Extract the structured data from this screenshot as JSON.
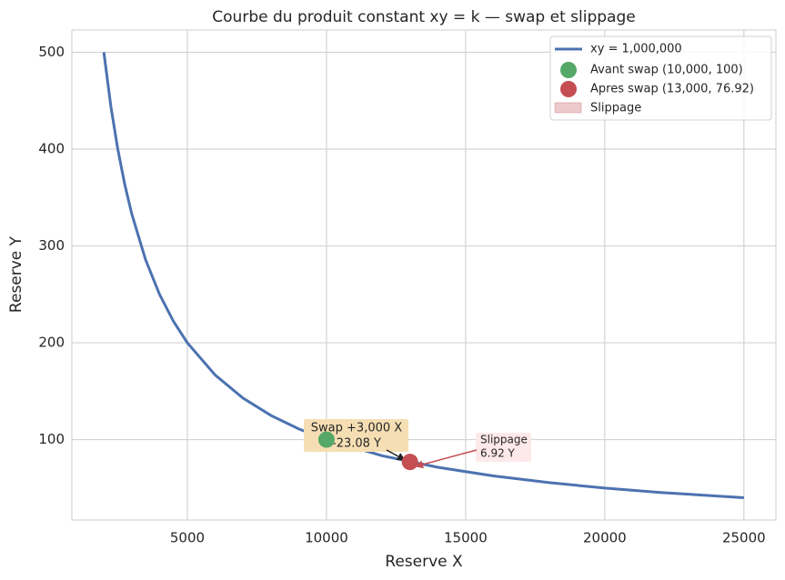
{
  "chart_data": {
    "type": "line",
    "title": "Courbe du produit constant xy = k — swap et slippage",
    "xlabel": "Reserve X",
    "ylabel": "Reserve Y",
    "xlim": [
      850,
      26150
    ],
    "ylim": [
      17,
      523
    ],
    "xticks": [
      5000,
      10000,
      15000,
      20000,
      25000
    ],
    "yticks": [
      100,
      200,
      300,
      400,
      500
    ],
    "grid": true,
    "legend": "upper right",
    "series": [
      {
        "name": "xy = 1,000,000",
        "color": "#4c72b0",
        "x": [
          2000,
          2250,
          2500,
          2750,
          3000,
          3500,
          4000,
          4500,
          5000,
          6000,
          7000,
          8000,
          9000,
          10000,
          12000,
          14000,
          16000,
          18000,
          20000,
          22000,
          25000
        ],
        "values": [
          500,
          444.44,
          400,
          363.64,
          333.33,
          285.71,
          250,
          222.22,
          200,
          166.67,
          142.86,
          125,
          111.11,
          100,
          83.33,
          71.43,
          62.5,
          55.56,
          50,
          45.45,
          40
        ]
      }
    ],
    "points": [
      {
        "name": "Avant swap (10,000, 100)",
        "color": "#55a868",
        "x": 10000,
        "y": 100
      },
      {
        "name": "Apres swap (13,000, 76.92)",
        "color": "#c44e52",
        "x": 13000,
        "y": 76.92
      }
    ],
    "slippage": {
      "name": "Slippage",
      "color": "#c44e52"
    },
    "annotations": [
      {
        "lines": [
          "Swap +3,000 X",
          "-23.08 Y"
        ],
        "color": "#222222",
        "box": "#f5deb3"
      },
      {
        "lines": [
          "Slippage",
          "6.92 Y"
        ],
        "color": "#c44e52",
        "box": "#fde8ea"
      }
    ]
  }
}
